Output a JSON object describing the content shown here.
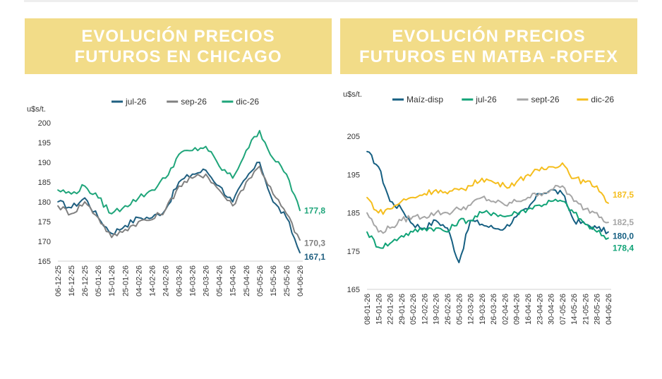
{
  "banners": {
    "left": {
      "line1": "EVOLUCIÓN PRECIOS",
      "line2": "FUTUROS EN CHICAGO"
    },
    "right": {
      "line1": "EVOLUCIÓN PRECIOS",
      "line2": "FUTUROS EN MATBA -ROFEX"
    }
  },
  "colors": {
    "banner": "#f2dc88",
    "jul": "#1f5f80",
    "sep": "#808080",
    "dic_chicago": "#1fa57a",
    "maiz": "#155f82",
    "jul_matba": "#11a377",
    "sept_matba": "#a6a6a6",
    "dic_matba": "#f5be1e"
  },
  "chart_data": [
    {
      "type": "line",
      "ylabel": "u$s/t.",
      "ylim": [
        165,
        200
      ],
      "yticks": [
        "200",
        "195",
        "190",
        "185",
        "180",
        "175",
        "170",
        "165"
      ],
      "x": [
        "06-12-25",
        "16-12-25",
        "26-12-25",
        "05-01-26",
        "15-01-26",
        "25-01-26",
        "04-02-26",
        "14-02-26",
        "24-02-26",
        "06-03-26",
        "16-03-26",
        "26-03-26",
        "05-04-26",
        "15-04-26",
        "25-04-26",
        "05-05-26",
        "15-05-26",
        "25-05-26",
        "04-06-26"
      ],
      "legend_position": "top",
      "grid": false,
      "series": [
        {
          "name": "jul-26",
          "color_key": "jul",
          "end_label": "167,1",
          "values": [
            180,
            178.5,
            181,
            176,
            172,
            174,
            176,
            176,
            178,
            185,
            187,
            188,
            184,
            180,
            186,
            190,
            180,
            176,
            167.1
          ]
        },
        {
          "name": "sep-26",
          "color_key": "sep",
          "end_label": "170,3",
          "values": [
            179,
            177,
            180,
            176,
            171,
            173,
            175,
            175.5,
            178,
            184,
            186,
            187,
            183,
            179,
            185,
            189,
            182,
            177,
            170.3
          ]
        },
        {
          "name": "dic-26",
          "color_key": "dic_chicago",
          "end_label": "177,8",
          "values": [
            183,
            182,
            184,
            181,
            177,
            179,
            181,
            183,
            186,
            192,
            193,
            194,
            189,
            186,
            193,
            198,
            191,
            187,
            177.8
          ]
        }
      ]
    },
    {
      "type": "line",
      "ylabel": "u$s/t.",
      "ylim": [
        165,
        205
      ],
      "yticks": [
        "205",
        "195",
        "185",
        "175",
        "165"
      ],
      "x": [
        "08-01-26",
        "15-01-26",
        "22-01-26",
        "29-01-26",
        "05-02-26",
        "12-02-26",
        "19-02-26",
        "26-02-26",
        "05-03-26",
        "12-03-26",
        "19-03-26",
        "26-03-26",
        "02-04-26",
        "09-04-26",
        "16-04-26",
        "23-04-26",
        "30-04-26",
        "07-05-26",
        "14-05-26",
        "21-05-26",
        "28-05-26",
        "04-06-26"
      ],
      "legend_position": "top",
      "grid": false,
      "series": [
        {
          "name": "Maíz-disp",
          "color_key": "maiz",
          "end_label": "180,0",
          "values": [
            201,
            197,
            188,
            186,
            182,
            181,
            183,
            181,
            172,
            183,
            182,
            181,
            181,
            184,
            186,
            190,
            191,
            190,
            183,
            182,
            181,
            180.0
          ]
        },
        {
          "name": "jul-26",
          "color_key": "jul_matba",
          "end_label": "178,4",
          "values": [
            180,
            176,
            177,
            179,
            180,
            181,
            181,
            180,
            183,
            183,
            185,
            185,
            184,
            185,
            186,
            187,
            188,
            188,
            185,
            182,
            180,
            178.4
          ]
        },
        {
          "name": "sept-26",
          "color_key": "sept_matba",
          "end_label": "182,5",
          "values": [
            185,
            180,
            181,
            183,
            184,
            184,
            185,
            185,
            186,
            187,
            189,
            188,
            187,
            188,
            189,
            190,
            191,
            192,
            188,
            186,
            185,
            182.5
          ]
        },
        {
          "name": "dic-26",
          "color_key": "dic_matba",
          "end_label": "187,5",
          "values": [
            189,
            185,
            186,
            188,
            189,
            190,
            191,
            190,
            191,
            192,
            194,
            193,
            192,
            193,
            195,
            196,
            197,
            198,
            194,
            193,
            192,
            187.5
          ]
        }
      ]
    }
  ]
}
